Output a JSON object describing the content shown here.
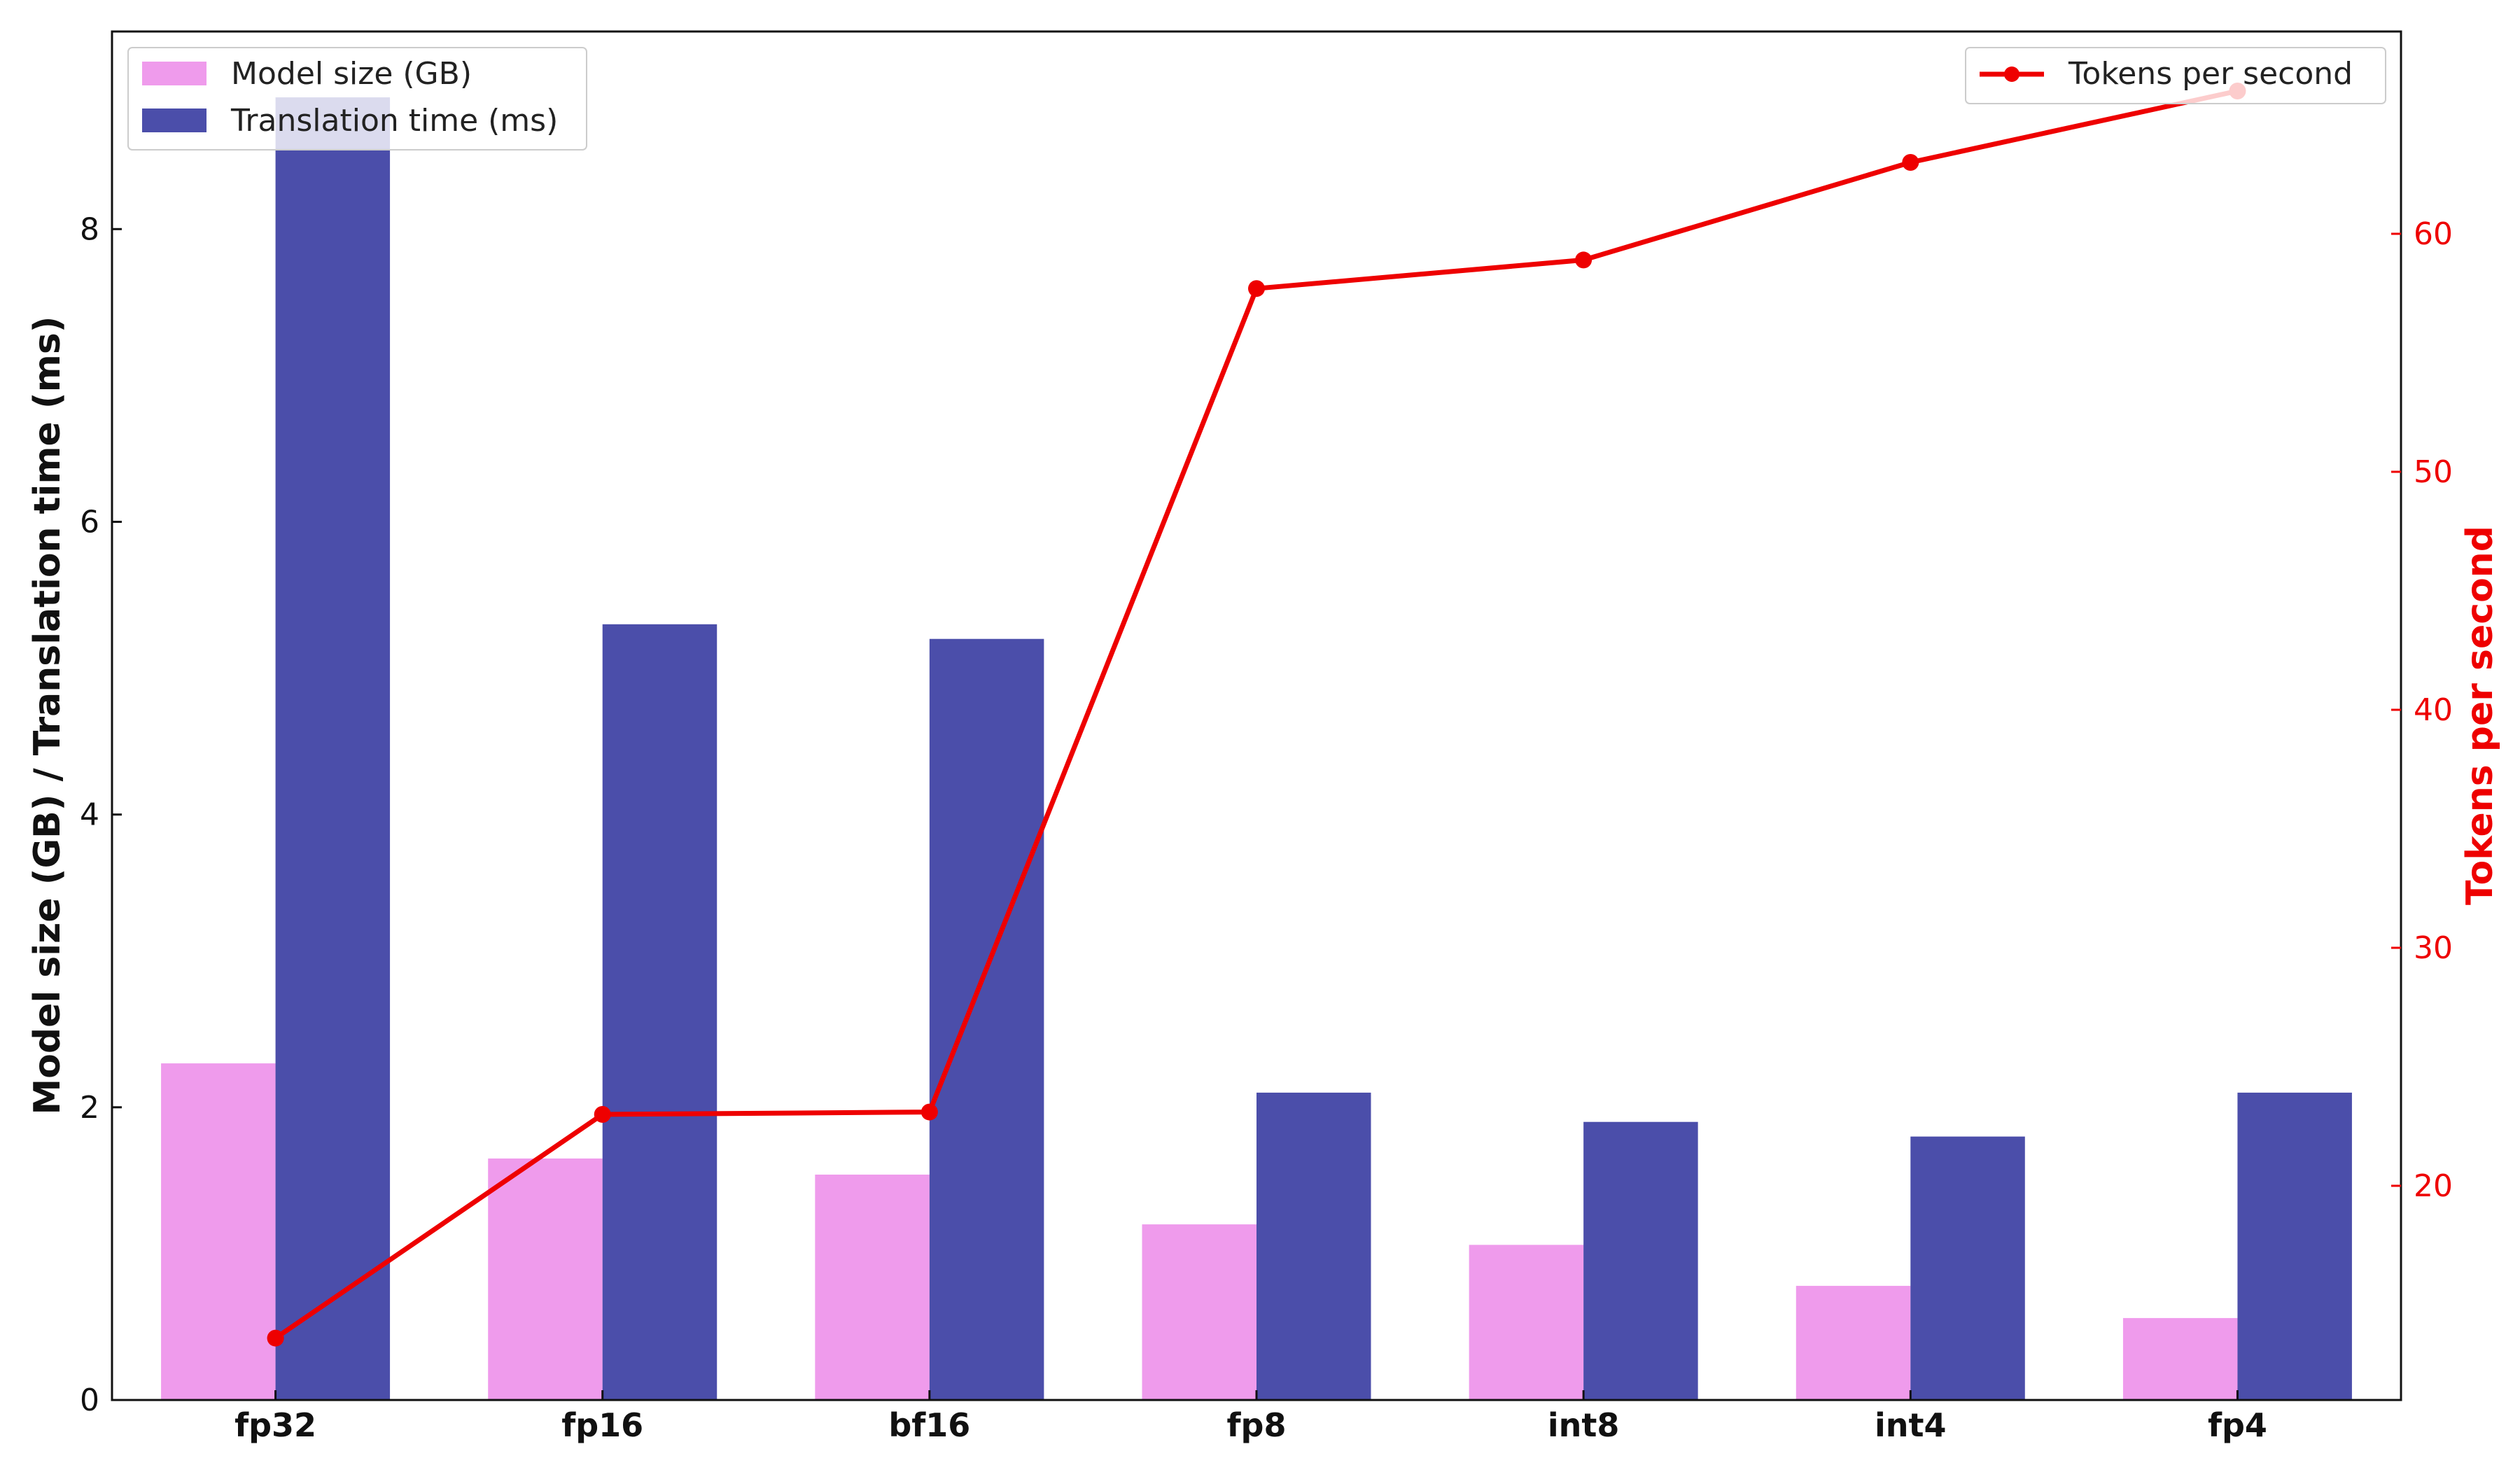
{
  "chart_data": {
    "type": "bar",
    "categories": [
      "fp32",
      "fp16",
      "bf16",
      "fp8",
      "int8",
      "int4",
      "fp4"
    ],
    "series": [
      {
        "name": "Model size (GB)",
        "kind": "bar",
        "axis": "left",
        "color": "#ef9bec",
        "values": [
          2.3,
          1.65,
          1.54,
          1.2,
          1.06,
          0.78,
          0.56
        ]
      },
      {
        "name": "Translation time (ms)",
        "kind": "bar",
        "axis": "left",
        "color": "#4b4eaa",
        "values": [
          8.9,
          5.3,
          5.2,
          2.1,
          1.9,
          1.8,
          2.1
        ]
      },
      {
        "name": "Tokens per second",
        "kind": "line",
        "axis": "right",
        "color": "#ee0000",
        "marker": "circle",
        "values": [
          13.6,
          23.0,
          23.1,
          57.7,
          58.9,
          63.0,
          66.0
        ]
      }
    ],
    "ylabel": "Model size (GB) / Translation time (ms)",
    "y2label": "Tokens per second",
    "ylim": [
      0,
      9.35
    ],
    "y2lim": [
      11.0,
      68.5
    ],
    "yticks": [
      "0",
      "2",
      "4",
      "6",
      "8"
    ],
    "y2ticks": [
      "20",
      "30",
      "40",
      "50",
      "60"
    ],
    "grid": false,
    "legend_left_placement": "top-left",
    "legend_right_placement": "top-right"
  }
}
